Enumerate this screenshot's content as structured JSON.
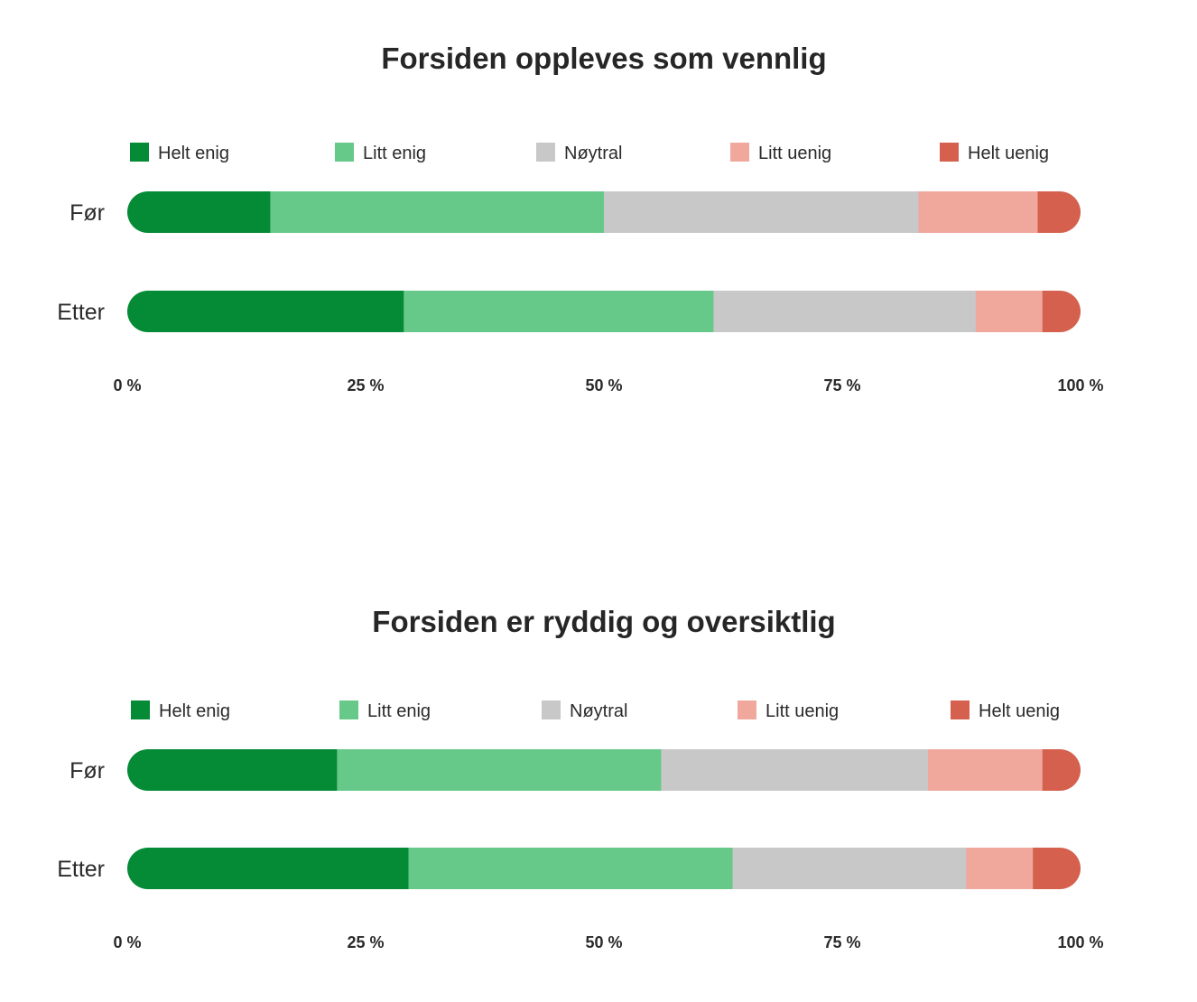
{
  "chart_data": [
    {
      "type": "bar",
      "orientation": "horizontal",
      "stacked": true,
      "normalized": true,
      "title": "Forsiden oppleves som vennlig",
      "categories": [
        "Før",
        "Etter"
      ],
      "series": [
        {
          "name": "Helt enig",
          "color": "#058a36",
          "values": [
            15,
            29
          ]
        },
        {
          "name": "Litt enig",
          "color": "#67c989",
          "values": [
            35,
            32.5
          ]
        },
        {
          "name": "Nøytral",
          "color": "#c8c8c8",
          "values": [
            33,
            27.5
          ]
        },
        {
          "name": "Litt uenig",
          "color": "#f0a89d",
          "values": [
            12.5,
            7
          ]
        },
        {
          "name": "Helt uenig",
          "color": "#d4604d",
          "values": [
            4.5,
            4
          ]
        }
      ],
      "xlim": [
        0,
        100
      ],
      "xticks": [
        "0 %",
        "25 %",
        "50 %",
        "75 %",
        "100 %"
      ],
      "legend_position": "top",
      "grid": false
    },
    {
      "type": "bar",
      "orientation": "horizontal",
      "stacked": true,
      "normalized": true,
      "title": "Forsiden er ryddig og oversiktlig",
      "categories": [
        "Før",
        "Etter"
      ],
      "series": [
        {
          "name": "Helt enig",
          "color": "#058a36",
          "values": [
            22,
            29.5
          ]
        },
        {
          "name": "Litt enig",
          "color": "#67c989",
          "values": [
            34,
            34
          ]
        },
        {
          "name": "Nøytral",
          "color": "#c8c8c8",
          "values": [
            28,
            24.5
          ]
        },
        {
          "name": "Litt uenig",
          "color": "#f0a89d",
          "values": [
            12,
            7
          ]
        },
        {
          "name": "Helt uenig",
          "color": "#d4604d",
          "values": [
            4,
            5
          ]
        }
      ],
      "xlim": [
        0,
        100
      ],
      "xticks": [
        "0 %",
        "25 %",
        "50 %",
        "75 %",
        "100 %"
      ],
      "legend_position": "top",
      "grid": false
    }
  ]
}
